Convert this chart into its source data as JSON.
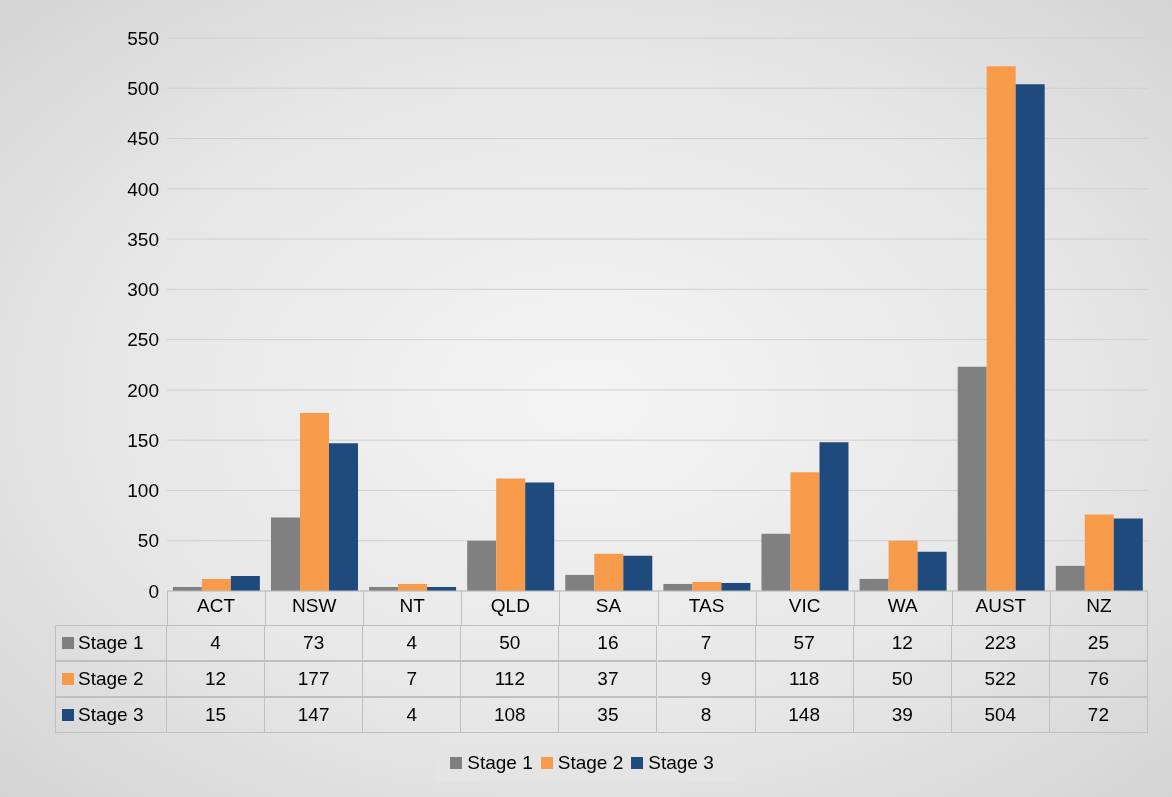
{
  "chart_data": {
    "type": "bar",
    "categories": [
      "ACT",
      "NSW",
      "NT",
      "QLD",
      "SA",
      "TAS",
      "VIC",
      "WA",
      "AUST",
      "NZ"
    ],
    "series": [
      {
        "name": "Stage 1",
        "color": "#808080",
        "values": [
          4,
          73,
          4,
          50,
          16,
          7,
          57,
          12,
          223,
          25
        ]
      },
      {
        "name": "Stage 2",
        "color": "#f79b4b",
        "values": [
          12,
          177,
          7,
          112,
          37,
          9,
          118,
          50,
          522,
          76
        ]
      },
      {
        "name": "Stage 3",
        "color": "#1f4a7d",
        "values": [
          15,
          147,
          4,
          108,
          35,
          8,
          148,
          39,
          504,
          72
        ]
      }
    ],
    "ylim": [
      0,
      550
    ],
    "yticks": [
      0,
      50,
      100,
      150,
      200,
      250,
      300,
      350,
      400,
      450,
      500,
      550
    ],
    "grid": "y",
    "legend": "bottom",
    "data_labels": true
  }
}
